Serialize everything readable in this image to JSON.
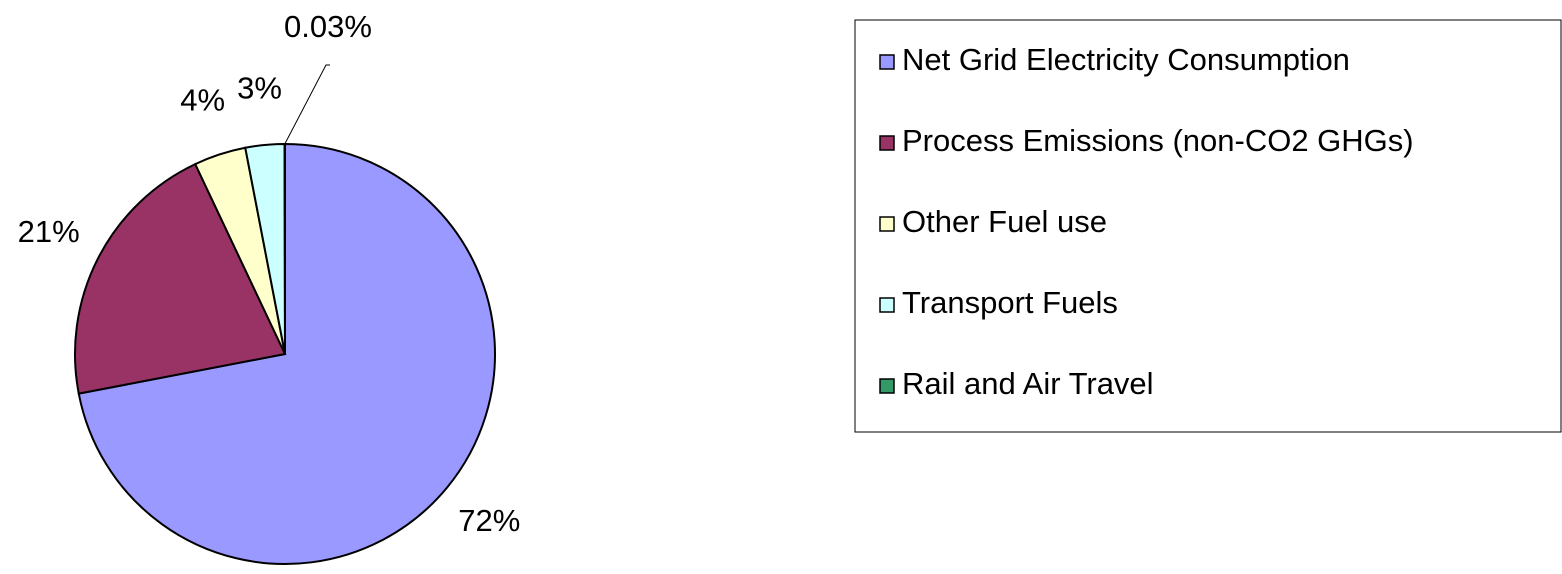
{
  "chart_data": {
    "type": "pie",
    "categories": [
      "Net Grid Electricity Consumption",
      "Process Emissions (non-CO2 GHGs)",
      "Other Fuel use",
      "Transport Fuels",
      "Rail and Air Travel"
    ],
    "values": [
      72,
      21,
      4,
      3,
      0.03
    ],
    "value_labels": [
      "72%",
      "21%",
      "4%",
      "3%",
      "0.03%"
    ],
    "colors": [
      "#9999ff",
      "#993366",
      "#ffffcc",
      "#ccffff",
      "#339966"
    ],
    "legend": "right"
  }
}
